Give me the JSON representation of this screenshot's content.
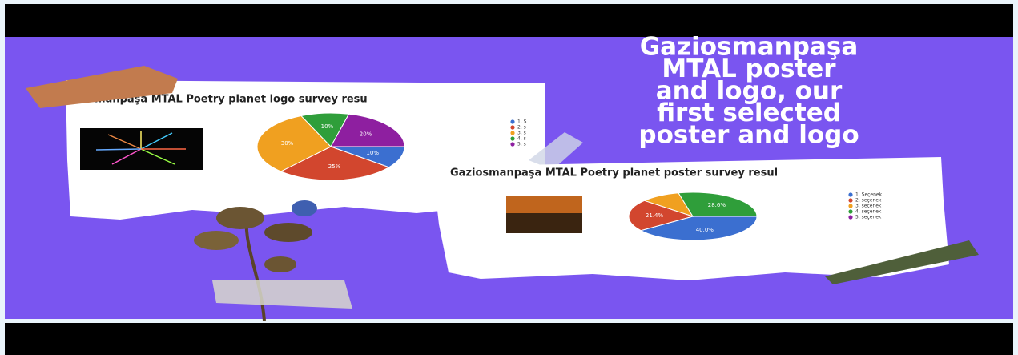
{
  "headline": [
    "Gaziosmanpaşa",
    "MTAL poster",
    "and logo, our",
    "first selected",
    "poster and logo"
  ],
  "chart_data": [
    {
      "type": "pie",
      "title": "manpaşa MTAL Poetry planet logo survey resu",
      "categories": [
        "1. S",
        "2. s",
        "3. s",
        "4. s",
        "5. s"
      ],
      "values": [
        10,
        25,
        30,
        10,
        20
      ],
      "value_labels": [
        "10%",
        "25%",
        "30%",
        "10%",
        "20%"
      ],
      "colors": [
        "#3b6fd0",
        "#d2462e",
        "#f0a020",
        "#2f9e3a",
        "#8e1fa0"
      ]
    },
    {
      "type": "pie",
      "title": "Gaziosmanpaşa MTAL Poetry planet poster survey resul",
      "categories": [
        "1. Seçenek",
        "2. seçenek",
        "3. seçenek",
        "4. seçenek",
        "5. seçenek"
      ],
      "values": [
        40.0,
        21.4,
        10,
        28.6,
        0
      ],
      "value_labels": [
        "40.0%",
        "21.4%",
        null,
        "28.6%",
        null
      ],
      "colors": [
        "#3b6fd0",
        "#d2462e",
        "#f0a020",
        "#2f9e3a",
        "#8e1fa0"
      ]
    }
  ]
}
